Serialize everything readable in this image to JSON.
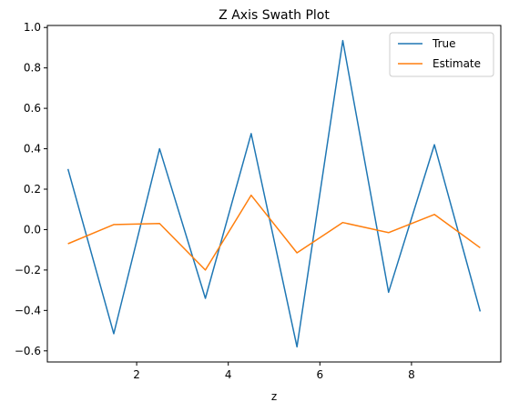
{
  "chart_data": {
    "type": "line",
    "title": "Z Axis Swath Plot",
    "xlabel": "z",
    "ylabel": "",
    "x": [
      0.5,
      1.5,
      2.5,
      3.5,
      4.5,
      5.5,
      6.5,
      7.5,
      8.5,
      9.5
    ],
    "xlim": [
      0.05,
      9.95
    ],
    "ylim": [
      -0.655,
      1.01
    ],
    "xticks": [
      2,
      4,
      6,
      8
    ],
    "yticks": [
      -0.6,
      -0.4,
      -0.2,
      0.0,
      0.2,
      0.4,
      0.6,
      0.8,
      1.0
    ],
    "xtick_labels": [
      "2",
      "4",
      "6",
      "8"
    ],
    "ytick_labels": [
      "−0.6",
      "−0.4",
      "−0.2",
      "0.0",
      "0.2",
      "0.4",
      "0.6",
      "0.8",
      "1.0"
    ],
    "grid": false,
    "legend_position": "top-right",
    "series": [
      {
        "name": "True",
        "color": "#1f77b4",
        "values": [
          0.3,
          -0.515,
          0.4,
          -0.34,
          0.475,
          -0.58,
          0.935,
          -0.31,
          0.42,
          -0.405
        ]
      },
      {
        "name": "Estimate",
        "color": "#ff7f0e",
        "values": [
          -0.07,
          0.025,
          0.03,
          -0.2,
          0.17,
          -0.115,
          0.035,
          -0.015,
          0.075,
          -0.09
        ]
      }
    ]
  }
}
